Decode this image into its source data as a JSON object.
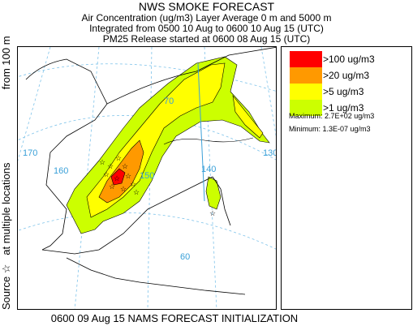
{
  "header": {
    "title": "NWS SMOKE FORECAST",
    "line2": "Air Concentration (ug/m3) Layer Average    0 m and  5000 m",
    "line3": "Integrated from 0500 10 Aug to 0600 10 Aug 15 (UTC)",
    "line4": "PM25 Release started at 0600 08 Aug 15 (UTC)"
  },
  "side_label": {
    "source_text": "Source ☆",
    "locations_text": "at multiple locations",
    "height_text": "from   100 m"
  },
  "legend": {
    "items": [
      {
        "label": ">100 ug/m3",
        "color": "#ff0000"
      },
      {
        "label": ">20 ug/m3",
        "color": "#ff9900"
      },
      {
        "label": ">5 ug/m3",
        "color": "#ffff00"
      },
      {
        "label": ">1 ug/m3",
        "color": "#ccff00"
      }
    ],
    "maximum": "Maximum: 2.7E+02 ug/m3",
    "minimum": "Minimum: 1.3E-07 ug/m3"
  },
  "map": {
    "coord_labels": [
      "170",
      "160",
      "150",
      "70",
      "140",
      "130",
      "60"
    ],
    "gridline_color": "#3aa0d8",
    "coastline_color": "#000000"
  },
  "footer": {
    "text": "0600 09 Aug 15 NAMS FORECAST INITIALIZATION"
  }
}
